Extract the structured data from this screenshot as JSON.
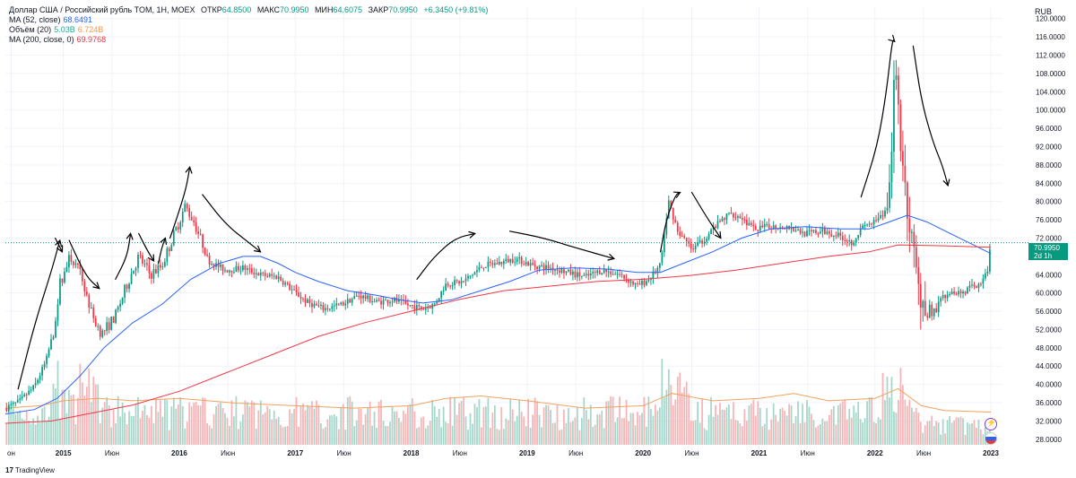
{
  "legend": {
    "instrument": "Доллар США / Российский рубль TOM, 1Н, MOEX",
    "open_label": "ОТКР",
    "open": "64.8500",
    "high_label": "МАКС",
    "high": "70.9950",
    "low_label": "МИН",
    "low": "64.6075",
    "close_label": "ЗАКР",
    "close": "70.9950",
    "change": "+6.3450 (+9.81%)",
    "ma52_label": "MA (52, close)",
    "ma52_value": "68.6491",
    "volume_label": "Объём (20)",
    "volume_value": "5.03B",
    "volume_ma": "6.724B",
    "ma200_label": "MA (200, close, 0)",
    "ma200_value": "69.9768"
  },
  "currency": "RUB",
  "last_price": {
    "value": "70.9950",
    "countdown": "2d 1h"
  },
  "branding": {
    "logo_text": "17",
    "name": "TradingView"
  },
  "colors": {
    "up": "#089981",
    "down": "#f23645",
    "ma52": "#2962ff",
    "ma200": "#f23645",
    "vol_up": "#a5d6c9",
    "vol_down": "#f7b3b5",
    "vol_ma": "#f0a35e",
    "annotation": "#000000"
  },
  "icons": [
    "lightning-icon",
    "us-flag-icon"
  ],
  "chart_data": {
    "type": "candlestick",
    "title": "Доллар США / Российский рубль TOM, 1Н, MOEX",
    "ylabel": "RUB",
    "ylim": [
      26,
      122.5
    ],
    "y_ticks": [
      "28.0000",
      "32.0000",
      "36.0000",
      "40.0000",
      "44.0000",
      "48.0000",
      "52.0000",
      "56.0000",
      "60.0000",
      "64.0000",
      "68.0000",
      "72.0000",
      "76.0000",
      "80.0000",
      "84.0000",
      "88.0000",
      "92.0000",
      "96.0000",
      "100.0000",
      "104.0000",
      "108.0000",
      "112.0000",
      "116.0000",
      "120.0000"
    ],
    "x_ticks": [
      {
        "t": 2014.55,
        "label": "он",
        "bold": false
      },
      {
        "t": 2015.0,
        "label": "2015",
        "bold": true
      },
      {
        "t": 2015.42,
        "label": "Июн",
        "bold": false
      },
      {
        "t": 2016.0,
        "label": "2016",
        "bold": true
      },
      {
        "t": 2016.42,
        "label": "Июн",
        "bold": false
      },
      {
        "t": 2017.0,
        "label": "2017",
        "bold": true
      },
      {
        "t": 2017.42,
        "label": "Июн",
        "bold": false
      },
      {
        "t": 2018.0,
        "label": "2018",
        "bold": true
      },
      {
        "t": 2018.42,
        "label": "Июн",
        "bold": false
      },
      {
        "t": 2019.0,
        "label": "2019",
        "bold": true
      },
      {
        "t": 2019.42,
        "label": "Июн",
        "bold": false
      },
      {
        "t": 2020.0,
        "label": "2020",
        "bold": true
      },
      {
        "t": 2020.42,
        "label": "Июн",
        "bold": false
      },
      {
        "t": 2021.0,
        "label": "2021",
        "bold": true
      },
      {
        "t": 2021.42,
        "label": "Июн",
        "bold": false
      },
      {
        "t": 2022.0,
        "label": "2022",
        "bold": true
      },
      {
        "t": 2022.42,
        "label": "Июн",
        "bold": false
      },
      {
        "t": 2023.0,
        "label": "2023",
        "bold": true
      }
    ],
    "xlim": [
      2014.5,
      2023.1
    ],
    "price_path": [
      [
        2014.5,
        34.8
      ],
      [
        2014.62,
        36.2
      ],
      [
        2014.75,
        39.5
      ],
      [
        2014.85,
        45.0
      ],
      [
        2014.92,
        52.0
      ],
      [
        2014.97,
        62.0
      ],
      [
        2015.06,
        68.0
      ],
      [
        2015.15,
        64.0
      ],
      [
        2015.25,
        55.0
      ],
      [
        2015.33,
        51.0
      ],
      [
        2015.45,
        55.0
      ],
      [
        2015.55,
        62.0
      ],
      [
        2015.65,
        68.0
      ],
      [
        2015.75,
        64.0
      ],
      [
        2015.85,
        66.0
      ],
      [
        2015.95,
        72.5
      ],
      [
        2016.05,
        79.0
      ],
      [
        2016.13,
        75.5
      ],
      [
        2016.25,
        67.0
      ],
      [
        2016.4,
        65.0
      ],
      [
        2016.55,
        65.5
      ],
      [
        2016.7,
        64.0
      ],
      [
        2016.85,
        63.5
      ],
      [
        2017.0,
        60.0
      ],
      [
        2017.1,
        58.0
      ],
      [
        2017.25,
        56.5
      ],
      [
        2017.4,
        57.5
      ],
      [
        2017.55,
        59.5
      ],
      [
        2017.7,
        58.0
      ],
      [
        2017.85,
        58.5
      ],
      [
        2017.95,
        57.5
      ],
      [
        2018.1,
        56.5
      ],
      [
        2018.2,
        57.5
      ],
      [
        2018.3,
        62.0
      ],
      [
        2018.45,
        62.5
      ],
      [
        2018.62,
        66.0
      ],
      [
        2018.75,
        66.5
      ],
      [
        2018.9,
        67.5
      ],
      [
        2019.05,
        66.0
      ],
      [
        2019.2,
        65.5
      ],
      [
        2019.35,
        64.5
      ],
      [
        2019.5,
        63.5
      ],
      [
        2019.65,
        65.0
      ],
      [
        2019.8,
        64.0
      ],
      [
        2019.95,
        61.5
      ],
      [
        2020.05,
        63.0
      ],
      [
        2020.15,
        66.0
      ],
      [
        2020.22,
        80.0
      ],
      [
        2020.3,
        73.5
      ],
      [
        2020.42,
        69.5
      ],
      [
        2020.5,
        71.0
      ],
      [
        2020.6,
        74.0
      ],
      [
        2020.75,
        77.5
      ],
      [
        2020.85,
        76.5
      ],
      [
        2020.95,
        74.0
      ],
      [
        2021.1,
        74.5
      ],
      [
        2021.25,
        74.5
      ],
      [
        2021.4,
        73.0
      ],
      [
        2021.55,
        73.5
      ],
      [
        2021.7,
        72.5
      ],
      [
        2021.8,
        71.0
      ],
      [
        2021.9,
        74.5
      ],
      [
        2022.0,
        75.5
      ],
      [
        2022.08,
        77.0
      ],
      [
        2022.13,
        83.0
      ],
      [
        2022.17,
        110.0
      ],
      [
        2022.2,
        100.0
      ],
      [
        2022.26,
        82.0
      ],
      [
        2022.32,
        71.0
      ],
      [
        2022.38,
        60.0
      ],
      [
        2022.45,
        57.0
      ],
      [
        2022.52,
        56.0
      ],
      [
        2022.58,
        59.0
      ],
      [
        2022.66,
        60.5
      ],
      [
        2022.75,
        60.0
      ],
      [
        2022.85,
        61.5
      ],
      [
        2022.93,
        62.5
      ],
      [
        2022.97,
        64.8
      ],
      [
        2023.0,
        71.0
      ]
    ],
    "series": [
      {
        "name": "MA (52, close)",
        "color": "#2962ff",
        "points": [
          [
            2014.5,
            33.5
          ],
          [
            2014.75,
            34.5
          ],
          [
            2014.95,
            37.0
          ],
          [
            2015.15,
            42.0
          ],
          [
            2015.35,
            48.0
          ],
          [
            2015.6,
            53.5
          ],
          [
            2015.85,
            57.5
          ],
          [
            2016.1,
            63.0
          ],
          [
            2016.35,
            66.5
          ],
          [
            2016.55,
            68.0
          ],
          [
            2016.7,
            68.0
          ],
          [
            2016.85,
            66.5
          ],
          [
            2017.0,
            64.5
          ],
          [
            2017.2,
            62.5
          ],
          [
            2017.45,
            60.5
          ],
          [
            2017.7,
            59.5
          ],
          [
            2017.9,
            58.5
          ],
          [
            2018.1,
            57.8
          ],
          [
            2018.35,
            58.5
          ],
          [
            2018.6,
            60.5
          ],
          [
            2018.85,
            62.5
          ],
          [
            2019.1,
            65.0
          ],
          [
            2019.4,
            65.5
          ],
          [
            2019.7,
            65.2
          ],
          [
            2019.95,
            64.5
          ],
          [
            2020.15,
            64.5
          ],
          [
            2020.35,
            66.5
          ],
          [
            2020.6,
            69.0
          ],
          [
            2020.85,
            72.0
          ],
          [
            2021.1,
            74.0
          ],
          [
            2021.4,
            74.5
          ],
          [
            2021.7,
            74.0
          ],
          [
            2021.95,
            74.0
          ],
          [
            2022.12,
            75.5
          ],
          [
            2022.28,
            77.0
          ],
          [
            2022.45,
            75.5
          ],
          [
            2022.65,
            73.0
          ],
          [
            2022.85,
            70.5
          ],
          [
            2023.0,
            68.6
          ]
        ]
      },
      {
        "name": "MA (200, close, 0)",
        "color": "#f23645",
        "points": [
          [
            2014.5,
            31.5
          ],
          [
            2014.9,
            32.0
          ],
          [
            2015.2,
            33.5
          ],
          [
            2015.6,
            35.5
          ],
          [
            2016.0,
            38.5
          ],
          [
            2016.4,
            42.5
          ],
          [
            2016.8,
            46.5
          ],
          [
            2017.2,
            50.5
          ],
          [
            2017.6,
            53.5
          ],
          [
            2018.0,
            56.0
          ],
          [
            2018.4,
            58.5
          ],
          [
            2018.8,
            60.5
          ],
          [
            2019.2,
            61.5
          ],
          [
            2019.6,
            62.5
          ],
          [
            2020.0,
            63.0
          ],
          [
            2020.4,
            63.8
          ],
          [
            2020.8,
            65.0
          ],
          [
            2021.2,
            66.5
          ],
          [
            2021.6,
            68.0
          ],
          [
            2021.95,
            69.0
          ],
          [
            2022.2,
            70.5
          ],
          [
            2022.6,
            70.3
          ],
          [
            2023.0,
            70.0
          ]
        ]
      }
    ],
    "volume": {
      "max_billion": 22,
      "ma_points": [
        [
          2014.5,
          7.5
        ],
        [
          2014.8,
          8.0
        ],
        [
          2015.0,
          9.0
        ],
        [
          2015.3,
          9.5
        ],
        [
          2015.6,
          9.0
        ],
        [
          2016.0,
          9.5
        ],
        [
          2016.5,
          8.5
        ],
        [
          2017.0,
          8.0
        ],
        [
          2017.5,
          7.5
        ],
        [
          2018.0,
          8.0
        ],
        [
          2018.3,
          9.5
        ],
        [
          2018.6,
          10.0
        ],
        [
          2019.0,
          9.0
        ],
        [
          2019.5,
          7.5
        ],
        [
          2020.0,
          8.0
        ],
        [
          2020.25,
          10.5
        ],
        [
          2020.6,
          9.0
        ],
        [
          2021.0,
          9.5
        ],
        [
          2021.3,
          10.5
        ],
        [
          2021.6,
          9.0
        ],
        [
          2022.0,
          9.5
        ],
        [
          2022.2,
          11.5
        ],
        [
          2022.4,
          8.0
        ],
        [
          2022.6,
          7.0
        ],
        [
          2023.0,
          6.7
        ]
      ]
    },
    "annotations": [
      [
        [
          2014.61,
          39.0
        ],
        [
          2014.75,
          53.0
        ],
        [
          2014.9,
          65.0
        ],
        [
          2014.97,
          71.5
        ]
      ],
      [
        [
          2014.93,
          72.0
        ],
        [
          2014.99,
          69.0
        ]
      ],
      [
        [
          2015.05,
          71.5
        ],
        [
          2015.15,
          66.0
        ],
        [
          2015.22,
          63.0
        ],
        [
          2015.31,
          61.0
        ]
      ],
      [
        [
          2015.45,
          63.0
        ],
        [
          2015.55,
          68.0
        ],
        [
          2015.58,
          73.0
        ]
      ],
      [
        [
          2015.65,
          73.0
        ],
        [
          2015.72,
          69.5
        ],
        [
          2015.78,
          67.0
        ]
      ],
      [
        [
          2015.82,
          66.5
        ],
        [
          2015.85,
          70.0
        ],
        [
          2015.88,
          72.0
        ]
      ],
      [
        [
          2015.92,
          72.0
        ],
        [
          2016.0,
          78.0
        ],
        [
          2016.06,
          83.0
        ],
        [
          2016.09,
          87.5
        ]
      ],
      [
        [
          2016.2,
          81.5
        ],
        [
          2016.4,
          75.0
        ],
        [
          2016.6,
          71.0
        ],
        [
          2016.7,
          69.0
        ]
      ],
      [
        [
          2018.05,
          63.0
        ],
        [
          2018.2,
          68.0
        ],
        [
          2018.38,
          72.0
        ],
        [
          2018.55,
          73.0
        ]
      ],
      [
        [
          2018.85,
          73.5
        ],
        [
          2019.15,
          72.0
        ],
        [
          2019.4,
          70.0
        ],
        [
          2019.75,
          67.5
        ]
      ],
      [
        [
          2020.15,
          69.0
        ],
        [
          2020.2,
          76.0
        ],
        [
          2020.28,
          81.5
        ],
        [
          2020.32,
          82.0
        ]
      ],
      [
        [
          2020.42,
          82.0
        ],
        [
          2020.55,
          76.5
        ],
        [
          2020.67,
          72.0
        ]
      ],
      [
        [
          2021.88,
          81.0
        ],
        [
          2022.02,
          92.0
        ],
        [
          2022.1,
          104.0
        ],
        [
          2022.15,
          115.5
        ],
        [
          2022.17,
          115.0
        ]
      ],
      [
        [
          2022.33,
          114.0
        ],
        [
          2022.4,
          102.0
        ],
        [
          2022.5,
          93.0
        ],
        [
          2022.58,
          88.0
        ],
        [
          2022.63,
          83.5
        ]
      ]
    ]
  }
}
